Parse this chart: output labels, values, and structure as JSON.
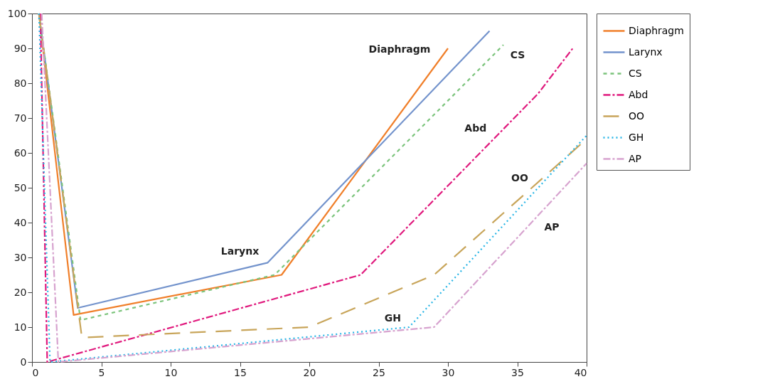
{
  "chart_data": {
    "type": "line",
    "xlim": [
      0,
      40
    ],
    "ylim": [
      0,
      100
    ],
    "xticks": [
      0,
      5,
      10,
      15,
      20,
      25,
      30,
      35,
      40
    ],
    "yticks": [
      0,
      10,
      20,
      30,
      40,
      50,
      60,
      70,
      80,
      90,
      100
    ],
    "grid": false,
    "legend": "right",
    "marker": "none",
    "series": [
      {
        "name": "Diaphragm",
        "color": "#f07f2a",
        "line_style": "solid",
        "x": [
          0.5,
          3,
          18,
          30
        ],
        "values": [
          100,
          13.5,
          25,
          90
        ]
      },
      {
        "name": "Larynx",
        "color": "#7393cc",
        "line_style": "solid",
        "x": [
          0.5,
          3.3,
          17,
          33
        ],
        "values": [
          100,
          15.5,
          28.5,
          95
        ]
      },
      {
        "name": "CS",
        "color": "#7cc47c",
        "line_style": "dashed",
        "x": [
          0.5,
          3.5,
          17.5,
          34
        ],
        "values": [
          100,
          12,
          25,
          91
        ]
      },
      {
        "name": "Abd",
        "color": "#e0197d",
        "line_style": "dashdot",
        "x": [
          0.6,
          1.1,
          23.7,
          36.5,
          39
        ],
        "values": [
          100,
          0,
          25,
          77,
          90
        ]
      },
      {
        "name": "OO",
        "color": "#c8a55a",
        "line_style": "longdash",
        "x": [
          0.5,
          3.6,
          20,
          29,
          40
        ],
        "values": [
          100,
          7,
          10,
          25,
          64
        ]
      },
      {
        "name": "GH",
        "color": "#27b5e6",
        "line_style": "dotted",
        "x": [
          0.5,
          1.3,
          27.2,
          40
        ],
        "values": [
          100,
          0,
          10,
          65
        ]
      },
      {
        "name": "AP",
        "color": "#d7a3cf",
        "line_style": "dashdot",
        "x": [
          0.7,
          1.9,
          29,
          40
        ],
        "values": [
          100,
          0,
          10,
          57
        ]
      }
    ]
  }
}
